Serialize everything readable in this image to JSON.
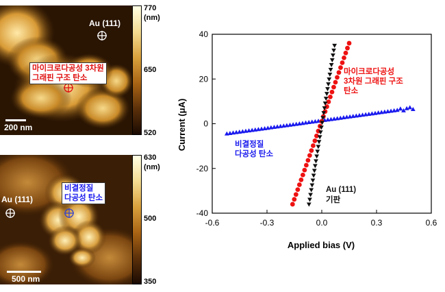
{
  "afm_top": {
    "label_au": "Au (111)",
    "label_sample": [
      "마이크로다공성 3차원",
      "그래핀 구조 탄소"
    ],
    "scale": "200 nm",
    "colorbar": {
      "max": "770",
      "unit": "(nm)",
      "mid": "650",
      "min": "520"
    }
  },
  "afm_bottom": {
    "label_au": "Au (111)",
    "label_sample": [
      "비결정질",
      "다공성 탄소"
    ],
    "scale": "500 nm",
    "colorbar": {
      "max": "630",
      "unit": "(nm)",
      "mid": "500",
      "min": "350"
    }
  },
  "chart_data": {
    "type": "scatter",
    "xlabel": "Applied bias (V)",
    "ylabel": "Current (μA)",
    "xlim": [
      -0.6,
      0.6
    ],
    "ylim": [
      -40,
      40
    ],
    "xticks": [
      "-0.6",
      "-0.3",
      "0.0",
      "0.3",
      "0.6"
    ],
    "yticks": [
      "40",
      "20",
      "0",
      "-20",
      "-40"
    ],
    "series": [
      {
        "name": "비결정질 다공성 탄소",
        "color": "#1a1aee",
        "marker": "triangle-up",
        "x_range": [
          -0.52,
          0.5
        ],
        "y_range": [
          -4.5,
          7.0
        ]
      },
      {
        "name": "마이크로다공성 3차원 그래핀 구조 탄소",
        "color": "#ee1111",
        "marker": "circle",
        "x_range": [
          -0.16,
          0.15
        ],
        "y_range": [
          -36,
          36
        ]
      },
      {
        "name": "Au (111) 기판",
        "color": "#111111",
        "marker": "triangle-down",
        "x_range": [
          -0.07,
          0.07
        ],
        "y_range": [
          -36,
          35
        ]
      }
    ],
    "annotations": [
      {
        "text": [
          "마이크로다공성",
          "3차원 그래핀 구조",
          "탄소"
        ],
        "color": "#ee1111"
      },
      {
        "text": [
          "비결정질",
          "다공성 탄소"
        ],
        "color": "#1a1aee"
      },
      {
        "text": [
          "Au (111)",
          "기판"
        ],
        "color": "#111111"
      }
    ]
  }
}
